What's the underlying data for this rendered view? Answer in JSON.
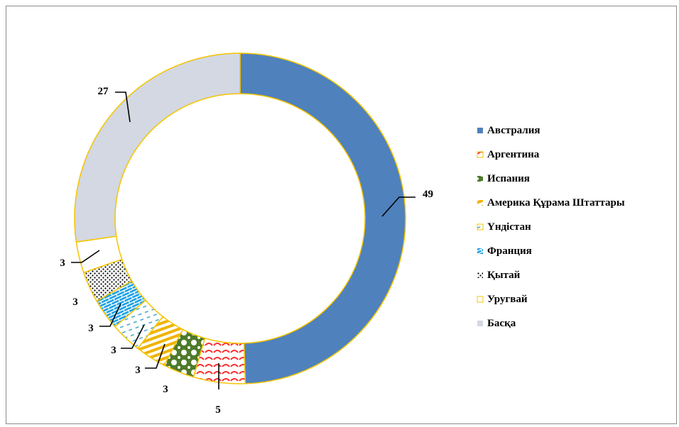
{
  "chart_data": {
    "type": "pie",
    "variant": "doughnut",
    "categories": [
      "Австралия",
      "Аргентина",
      "Испания",
      "Америка Құрама Штаттары",
      "Үндістан",
      "Франция",
      "Қытай",
      "Уругвай",
      "Басқа"
    ],
    "values": [
      49,
      5,
      3,
      3,
      3,
      3,
      3,
      3,
      27
    ],
    "data_labels": [
      "49",
      "5",
      "3",
      "3",
      "3",
      "3",
      "3",
      "3",
      "27"
    ],
    "legend_position": "right",
    "colors": [
      "#4f81bd",
      "#ff0000",
      "#4e7a2a",
      "#f0b400",
      "#4bacc6",
      "#1aa0e6",
      "#000000",
      "#ffffff",
      "#d3d8e2"
    ],
    "patterns": [
      "solid",
      "red-scallops",
      "green-diamonds",
      "orange-stripes",
      "cyan-dashes",
      "blue-bricks",
      "black-dots",
      "white",
      "solid"
    ],
    "border_color": "#f5c400"
  }
}
